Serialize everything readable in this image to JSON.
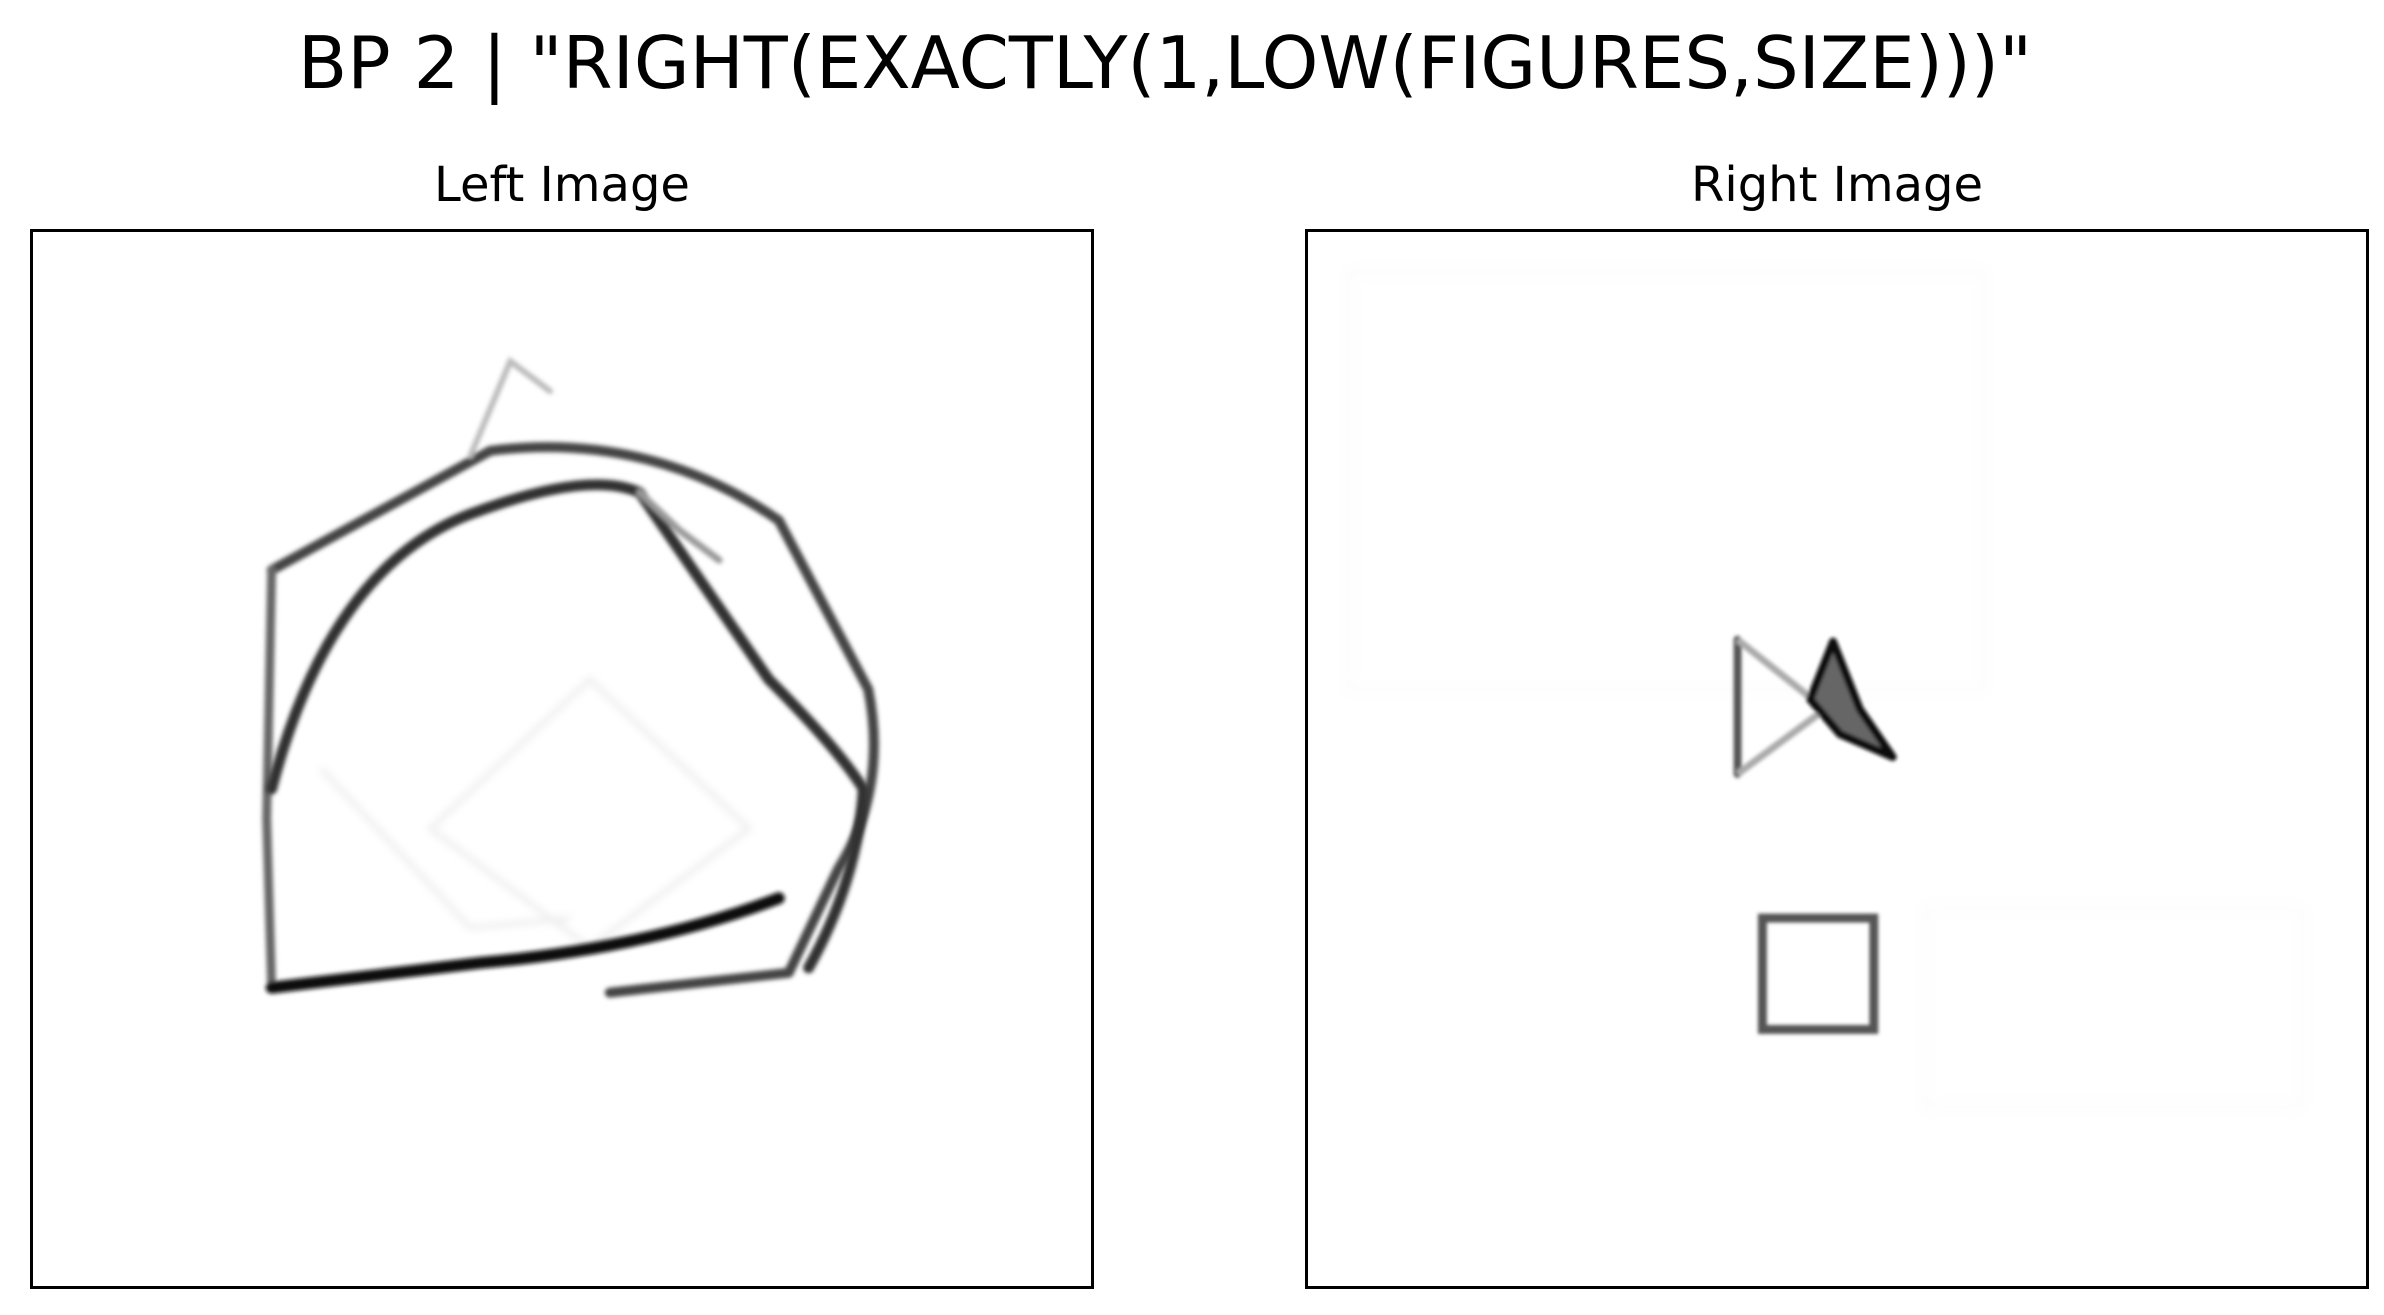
{
  "figure": {
    "title": "BP 2 | \"RIGHT(EXACTLY(1,LOW(FIGURES,SIZE)))\""
  },
  "panels": {
    "left": {
      "title": "Left Image",
      "description_icons": [
        "large-diamond-shape",
        "large-rounded-shape"
      ]
    },
    "right": {
      "title": "Right Image",
      "description_icons": [
        "small-bowtie-shape",
        "small-square-shape"
      ]
    }
  },
  "colors": {
    "background": "#ffffff",
    "stroke_dark": "#111111",
    "stroke_mid": "#555555",
    "stroke_light": "#bbbbbb",
    "frame": "#000000"
  }
}
